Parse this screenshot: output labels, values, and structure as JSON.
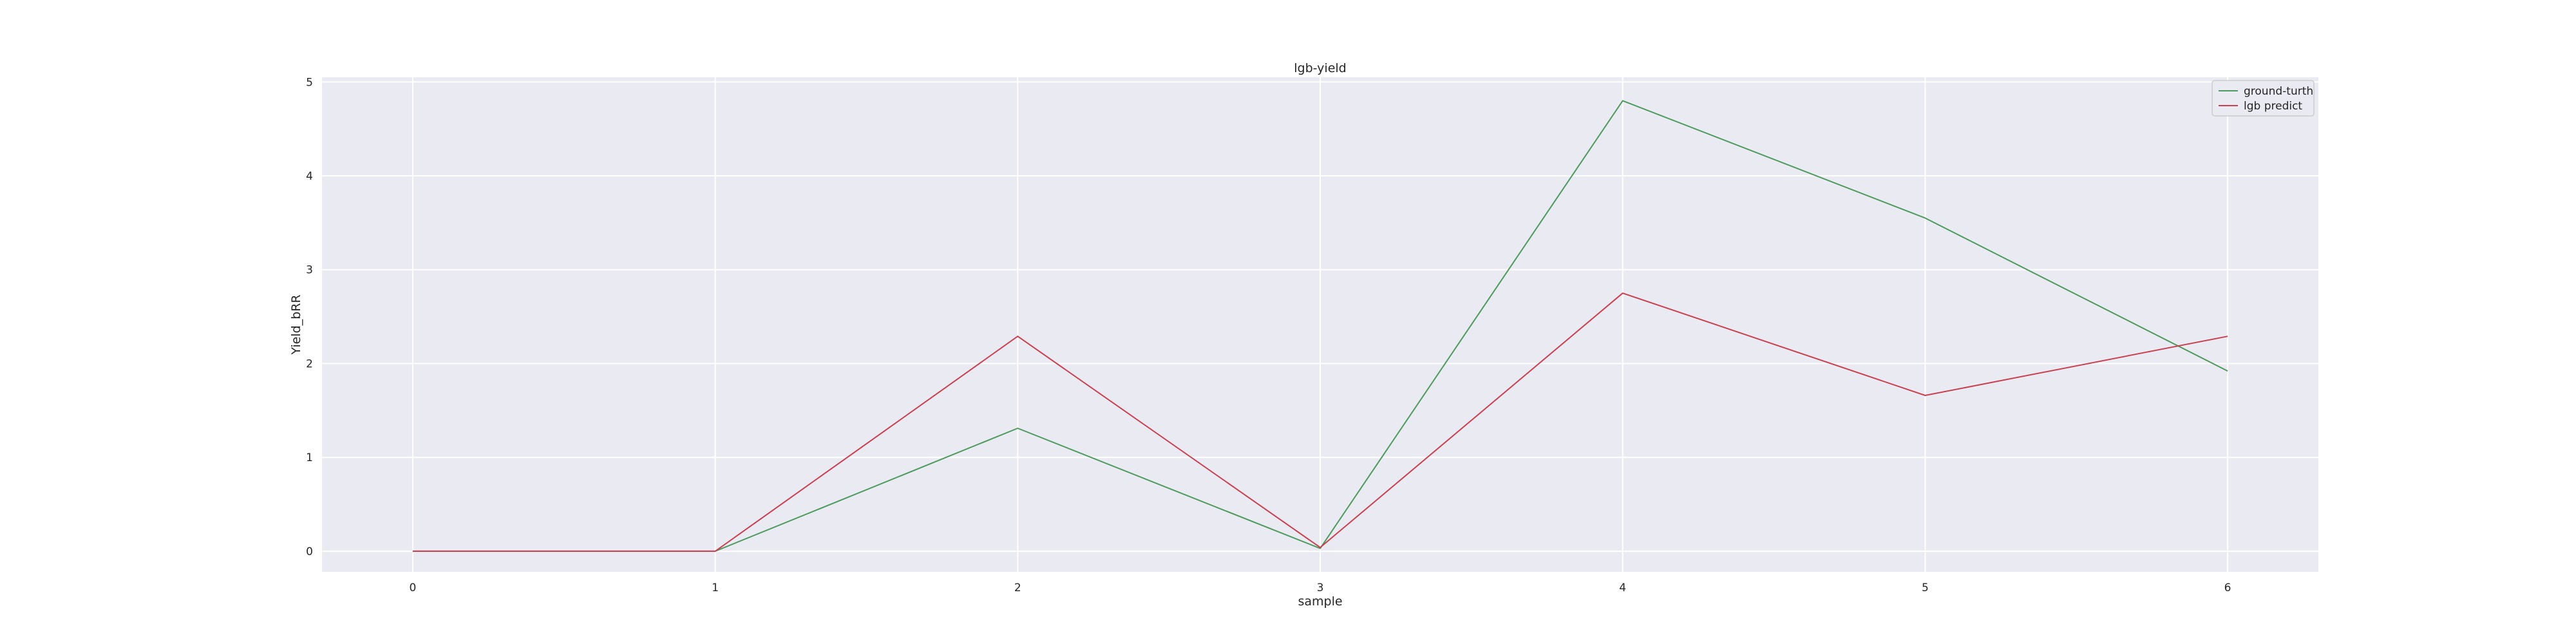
{
  "chart_data": {
    "type": "line",
    "title": "lgb-yield",
    "xlabel": "sample",
    "ylabel": "Yield_bRR",
    "x": [
      0,
      1,
      2,
      3,
      4,
      5,
      6
    ],
    "xlim": [
      -0.3,
      6.3
    ],
    "ylim": [
      -0.22,
      5.05
    ],
    "xticks": [
      0,
      1,
      2,
      3,
      4,
      5,
      6
    ],
    "yticks": [
      0,
      1,
      2,
      3,
      4,
      5
    ],
    "grid": true,
    "legend_position": "top-right",
    "series": [
      {
        "name": "ground-turth",
        "color": "#4c9a5c",
        "values": [
          0.0,
          0.0,
          1.31,
          0.03,
          4.8,
          3.55,
          1.92
        ]
      },
      {
        "name": "lgb predict",
        "color": "#c9404f",
        "values": [
          0.0,
          0.0,
          2.29,
          0.04,
          2.75,
          1.66,
          2.29
        ]
      }
    ]
  }
}
